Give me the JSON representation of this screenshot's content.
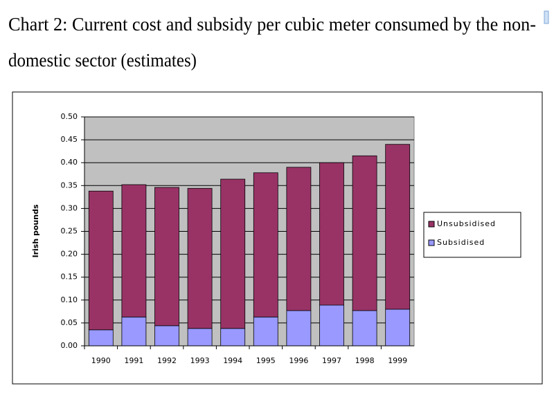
{
  "chart_data": {
    "type": "stacked_bar",
    "title": [
      "Chart 2: Current cost and subsidy per cubic meter consumed by the non-",
      "domestic sector (estimates)"
    ],
    "y_label": "Irish pounds",
    "categories": [
      "1990",
      "1991",
      "1992",
      "1993",
      "1994",
      "1995",
      "1996",
      "1997",
      "1998",
      "1999"
    ],
    "series": [
      {
        "name": "Unsubsidised",
        "color": "#993366",
        "values": [
          0.303,
          0.289,
          0.302,
          0.306,
          0.326,
          0.315,
          0.313,
          0.311,
          0.338,
          0.36
        ]
      },
      {
        "name": "Subsidised",
        "color": "#9999ff",
        "values": [
          0.035,
          0.063,
          0.044,
          0.038,
          0.038,
          0.063,
          0.077,
          0.089,
          0.077,
          0.08
        ]
      }
    ],
    "ylim": [
      0,
      0.5
    ],
    "yticks": [
      {
        "value": 0,
        "label": "0.00"
      },
      0.05,
      {
        "value": 0.1,
        "label": "0.10"
      },
      0.15,
      {
        "value": 0.2,
        "label": "0.20"
      },
      0.25,
      {
        "value": 0.3,
        "label": "0.30"
      },
      0.35,
      {
        "value": 0.4,
        "label": "0.40"
      },
      0.45,
      {
        "value": 0.5,
        "label": "0.50"
      }
    ],
    "grid": true,
    "plot_background": "#c0c0c0",
    "legend": "right"
  }
}
